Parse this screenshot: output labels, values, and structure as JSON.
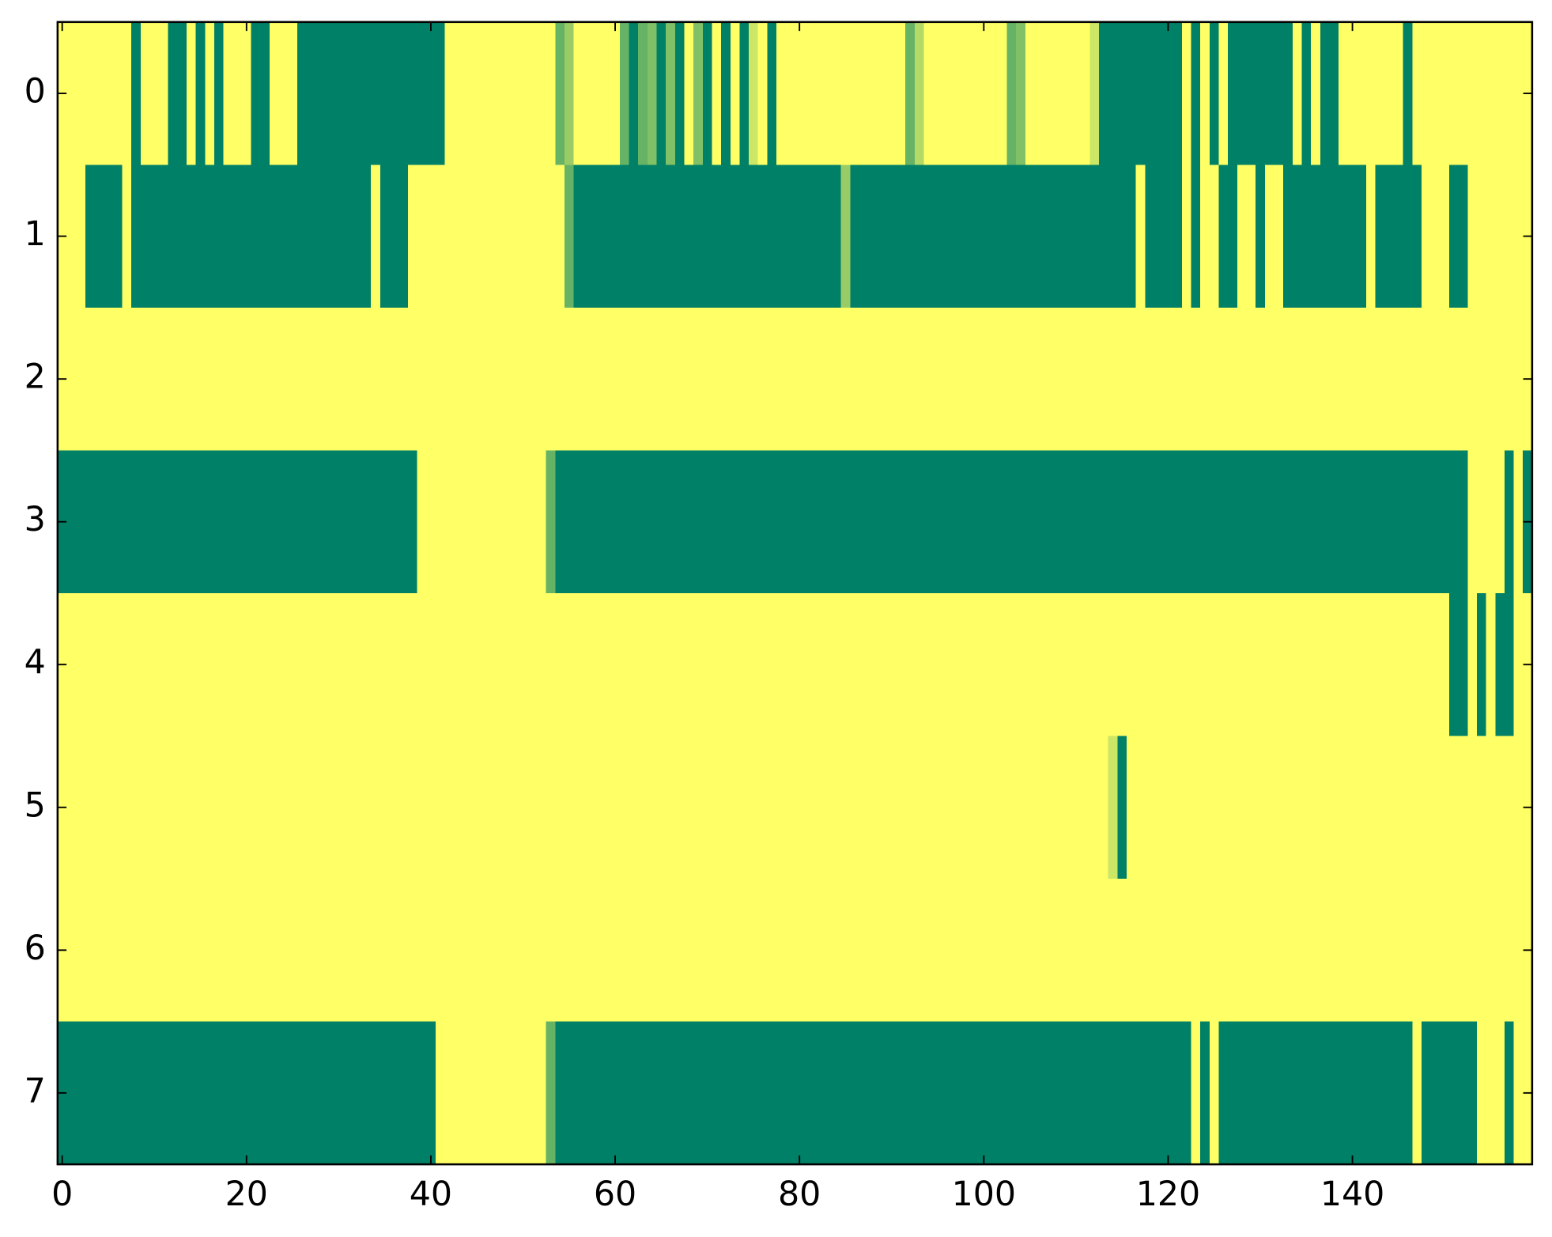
{
  "chart_data": {
    "type": "heatmap",
    "xlim": [
      -0.5,
      159.5
    ],
    "ylim": [
      7.5,
      -0.5
    ],
    "xticks": [
      0,
      20,
      40,
      60,
      80,
      100,
      120,
      140
    ],
    "yticks": [
      0,
      1,
      2,
      3,
      4,
      5,
      6,
      7
    ],
    "cmap_colors": [
      "#008066",
      "#ffff66"
    ],
    "clim": [
      0,
      1
    ],
    "values": [
      [
        1,
        1,
        1,
        1,
        1,
        1,
        1,
        1,
        0,
        1,
        1,
        1,
        0,
        0,
        1,
        0,
        1,
        0,
        1,
        1,
        1,
        0,
        0,
        1,
        1,
        1,
        0,
        0,
        0,
        0,
        0,
        0,
        0,
        0,
        0,
        0,
        0,
        0,
        0,
        0,
        0,
        0,
        1,
        1,
        1,
        1,
        1,
        1,
        1,
        1,
        1,
        1,
        1,
        1,
        0.4,
        0.6,
        1,
        1,
        1,
        1,
        1,
        0.4,
        0,
        0.4,
        0.5,
        0,
        0.5,
        0,
        1,
        0.5,
        0,
        1,
        0,
        1,
        0,
        0.8,
        1,
        0,
        1,
        1,
        1,
        1,
        1,
        1,
        1,
        1,
        1,
        1,
        1,
        1,
        1,
        1,
        0.4,
        0.7,
        1,
        1,
        1,
        1,
        1,
        1,
        1,
        1,
        1,
        0.4,
        0.5,
        1,
        1,
        1,
        1,
        1,
        1,
        1,
        0.8,
        0,
        0,
        0,
        0,
        0,
        0,
        0,
        0,
        0,
        1,
        0,
        1,
        0,
        1,
        0,
        0,
        0,
        0,
        0,
        0,
        0,
        1,
        0,
        1,
        0,
        0,
        1,
        1,
        1,
        1,
        1,
        1,
        1,
        0,
        1,
        1,
        1,
        1,
        1,
        1,
        1,
        1,
        1,
        1,
        1,
        1,
        1
      ],
      [
        1,
        1,
        1,
        0,
        0,
        0,
        0,
        1,
        0,
        0,
        0,
        0,
        0,
        0,
        0,
        0,
        0,
        0,
        0,
        0,
        0,
        0,
        0,
        0,
        0,
        0,
        0,
        0,
        0,
        0,
        0,
        0,
        0,
        0,
        1,
        0,
        0,
        0,
        1,
        1,
        1,
        1,
        1,
        1,
        1,
        1,
        1,
        1,
        1,
        1,
        1,
        1,
        1,
        1,
        1,
        0.4,
        0,
        0,
        0,
        0,
        0,
        0,
        0,
        0,
        0,
        0,
        0,
        0,
        0,
        0,
        0,
        0,
        0,
        0,
        0,
        0,
        0,
        0,
        0,
        0,
        0,
        0,
        0,
        0,
        0,
        0.6,
        0,
        0,
        0,
        0,
        0,
        0,
        0,
        0,
        0,
        0,
        0,
        0,
        0,
        0,
        0,
        0,
        0,
        0,
        0,
        0,
        0,
        0,
        0,
        0,
        0,
        0,
        0,
        0,
        0,
        0,
        0,
        1,
        0,
        0,
        0,
        0,
        1,
        0,
        1,
        1,
        0,
        0,
        1,
        1,
        0,
        1,
        1,
        0,
        0,
        0,
        0,
        0,
        0,
        0,
        0,
        0,
        1,
        0,
        0,
        0,
        0,
        0,
        1,
        1,
        1,
        0,
        0,
        1,
        1,
        1,
        1,
        1,
        1,
        1
      ],
      [
        1,
        1,
        1,
        1,
        1,
        1,
        1,
        1,
        1,
        1,
        1,
        1,
        1,
        1,
        1,
        1,
        1,
        1,
        1,
        1,
        1,
        1,
        1,
        1,
        1,
        1,
        1,
        1,
        1,
        1,
        1,
        1,
        1,
        1,
        1,
        1,
        1,
        1,
        1,
        1,
        1,
        1,
        1,
        1,
        1,
        1,
        1,
        1,
        1,
        1,
        1,
        1,
        1,
        1,
        1,
        1,
        1,
        1,
        1,
        1,
        1,
        1,
        1,
        1,
        1,
        1,
        1,
        1,
        1,
        1,
        1,
        1,
        1,
        1,
        1,
        1,
        1,
        1,
        1,
        1,
        1,
        1,
        1,
        1,
        1,
        1,
        1,
        1,
        1,
        1,
        1,
        1,
        1,
        1,
        1,
        1,
        1,
        1,
        1,
        1,
        1,
        1,
        1,
        1,
        1,
        1,
        1,
        1,
        1,
        1,
        1,
        1,
        1,
        1,
        1,
        1,
        1,
        1,
        1,
        1,
        1,
        1,
        1,
        1,
        1,
        1,
        1,
        1,
        1,
        1,
        1,
        1,
        1,
        1,
        1,
        1,
        1,
        1,
        1,
        1,
        1,
        1,
        1,
        1,
        1,
        1,
        1,
        1,
        1,
        1,
        1,
        1,
        1,
        1,
        1,
        1,
        1,
        1,
        1,
        1
      ],
      [
        0,
        0,
        0,
        0,
        0,
        0,
        0,
        0,
        0,
        0,
        0,
        0,
        0,
        0,
        0,
        0,
        0,
        0,
        0,
        0,
        0,
        0,
        0,
        0,
        0,
        0,
        0,
        0,
        0,
        0,
        0,
        0,
        0,
        0,
        0,
        0,
        0,
        0,
        0,
        1,
        1,
        1,
        1,
        1,
        1,
        1,
        1,
        1,
        1,
        1,
        1,
        1,
        1,
        0.4,
        0,
        0,
        0,
        0,
        0,
        0,
        0,
        0,
        0,
        0,
        0,
        0,
        0,
        0,
        0,
        0,
        0,
        0,
        0,
        0,
        0,
        0,
        0,
        0,
        0,
        0,
        0,
        0,
        0,
        0,
        0,
        0,
        0,
        0,
        0,
        0,
        0,
        0,
        0,
        0,
        0,
        0,
        0,
        0,
        0,
        0,
        0,
        0,
        0,
        0,
        0,
        0,
        0,
        0,
        0,
        0,
        0,
        0,
        0,
        0,
        0,
        0,
        0,
        0,
        0,
        0,
        0,
        0,
        0,
        0,
        0,
        0,
        0,
        0,
        0,
        0,
        0,
        0,
        0,
        0,
        0,
        0,
        0,
        0,
        0,
        0,
        0,
        0,
        0,
        0,
        0,
        0,
        0,
        0,
        0,
        0,
        0,
        0,
        0,
        1,
        1,
        1,
        1,
        0,
        1,
        0
      ],
      [
        1,
        1,
        1,
        1,
        1,
        1,
        1,
        1,
        1,
        1,
        1,
        1,
        1,
        1,
        1,
        1,
        1,
        1,
        1,
        1,
        1,
        1,
        1,
        1,
        1,
        1,
        1,
        1,
        1,
        1,
        1,
        1,
        1,
        1,
        1,
        1,
        1,
        1,
        1,
        1,
        1,
        1,
        1,
        1,
        1,
        1,
        1,
        1,
        1,
        1,
        1,
        1,
        1,
        1,
        1,
        1,
        1,
        1,
        1,
        1,
        1,
        1,
        1,
        1,
        1,
        1,
        1,
        1,
        1,
        1,
        1,
        1,
        1,
        1,
        1,
        1,
        1,
        1,
        1,
        1,
        1,
        1,
        1,
        1,
        1,
        1,
        1,
        1,
        1,
        1,
        1,
        1,
        1,
        1,
        1,
        1,
        1,
        1,
        1,
        1,
        1,
        1,
        1,
        1,
        1,
        1,
        1,
        1,
        1,
        1,
        1,
        1,
        1,
        1,
        1,
        1,
        1,
        1,
        1,
        1,
        1,
        1,
        1,
        1,
        1,
        1,
        1,
        1,
        1,
        1,
        1,
        1,
        1,
        1,
        1,
        1,
        1,
        1,
        1,
        1,
        1,
        1,
        1,
        1,
        1,
        1,
        1,
        1,
        1,
        1,
        1,
        0,
        0,
        1,
        0,
        1,
        0,
        0,
        1,
        1
      ],
      [
        1,
        1,
        1,
        1,
        1,
        1,
        1,
        1,
        1,
        1,
        1,
        1,
        1,
        1,
        1,
        1,
        1,
        1,
        1,
        1,
        1,
        1,
        1,
        1,
        1,
        1,
        1,
        1,
        1,
        1,
        1,
        1,
        1,
        1,
        1,
        1,
        1,
        1,
        1,
        1,
        1,
        1,
        1,
        1,
        1,
        1,
        1,
        1,
        1,
        1,
        1,
        1,
        1,
        1,
        1,
        1,
        1,
        1,
        1,
        1,
        1,
        1,
        1,
        1,
        1,
        1,
        1,
        1,
        1,
        1,
        1,
        1,
        1,
        1,
        1,
        1,
        1,
        1,
        1,
        1,
        1,
        1,
        1,
        1,
        1,
        1,
        1,
        1,
        1,
        1,
        1,
        1,
        1,
        1,
        1,
        1,
        1,
        1,
        1,
        1,
        1,
        1,
        1,
        1,
        1,
        1,
        1,
        1,
        1,
        1,
        1,
        1,
        1,
        1,
        0.8,
        0,
        1,
        1,
        1,
        1,
        1,
        1,
        1,
        1,
        1,
        1,
        1,
        1,
        1,
        1,
        1,
        1,
        1,
        1,
        1,
        1,
        1,
        1,
        1,
        1,
        1,
        1,
        1,
        1,
        1,
        1,
        1,
        1,
        1,
        1,
        1,
        1,
        1,
        1,
        1,
        1,
        1,
        1,
        1,
        1
      ],
      [
        1,
        1,
        1,
        1,
        1,
        1,
        1,
        1,
        1,
        1,
        1,
        1,
        1,
        1,
        1,
        1,
        1,
        1,
        1,
        1,
        1,
        1,
        1,
        1,
        1,
        1,
        1,
        1,
        1,
        1,
        1,
        1,
        1,
        1,
        1,
        1,
        1,
        1,
        1,
        1,
        1,
        1,
        1,
        1,
        1,
        1,
        1,
        1,
        1,
        1,
        1,
        1,
        1,
        1,
        1,
        1,
        1,
        1,
        1,
        1,
        1,
        1,
        1,
        1,
        1,
        1,
        1,
        1,
        1,
        1,
        1,
        1,
        1,
        1,
        1,
        1,
        1,
        1,
        1,
        1,
        1,
        1,
        1,
        1,
        1,
        1,
        1,
        1,
        1,
        1,
        1,
        1,
        1,
        1,
        1,
        1,
        1,
        1,
        1,
        1,
        1,
        1,
        1,
        1,
        1,
        1,
        1,
        1,
        1,
        1,
        1,
        1,
        1,
        1,
        1,
        1,
        1,
        1,
        1,
        1,
        1,
        1,
        1,
        1,
        1,
        1,
        1,
        1,
        1,
        1,
        1,
        1,
        1,
        1,
        1,
        1,
        1,
        1,
        1,
        1,
        1,
        1,
        1,
        1,
        1,
        1,
        1,
        1,
        1,
        1,
        1,
        1,
        1,
        1,
        1,
        1,
        1,
        1,
        1,
        1
      ],
      [
        0,
        0,
        0,
        0,
        0,
        0,
        0,
        0,
        0,
        0,
        0,
        0,
        0,
        0,
        0,
        0,
        0,
        0,
        0,
        0,
        0,
        0,
        0,
        0,
        0,
        0,
        0,
        0,
        0,
        0,
        0,
        0,
        0,
        0,
        0,
        0,
        0,
        0,
        0,
        0,
        0,
        1,
        1,
        1,
        1,
        1,
        1,
        1,
        1,
        1,
        1,
        1,
        1,
        0.4,
        0,
        0,
        0,
        0,
        0,
        0,
        0,
        0,
        0,
        0,
        0,
        0,
        0,
        0,
        0,
        0,
        0,
        0,
        0,
        0,
        0,
        0,
        0,
        0,
        0,
        0,
        0,
        0,
        0,
        0,
        0,
        0,
        0,
        0,
        0,
        0,
        0,
        0,
        0,
        0,
        0,
        0,
        0,
        0,
        0,
        0,
        0,
        0,
        0,
        0,
        0,
        0,
        0,
        0,
        0,
        0,
        0,
        0,
        0,
        0,
        0,
        0,
        0,
        0,
        0,
        0,
        0,
        0,
        0,
        1,
        0,
        1,
        0,
        0,
        0,
        0,
        0,
        0,
        0,
        0,
        0,
        0,
        0,
        0,
        0,
        0,
        0,
        0,
        0,
        0,
        0,
        0,
        0,
        1,
        0,
        0,
        0,
        0,
        0,
        0,
        1,
        1,
        1,
        0,
        1,
        1
      ]
    ]
  }
}
